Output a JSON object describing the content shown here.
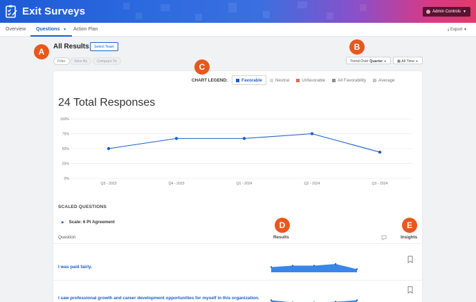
{
  "app": {
    "title": "Exit Surveys",
    "admin_label": "Admin Controls"
  },
  "nav": {
    "tabs": [
      {
        "label": "Overview"
      },
      {
        "label": "Questions"
      },
      {
        "label": "Action Plan"
      }
    ],
    "export_label": "Export"
  },
  "markers": {
    "a": "A",
    "b": "B",
    "c": "C",
    "d": "D",
    "e": "E"
  },
  "header": {
    "title": "All Results",
    "select_team": "Select Team",
    "filter": "Filter",
    "slice_by": "Slice By",
    "compare_to": "Compare To",
    "trend_prefix": "Trend Over",
    "trend_value": "Quarter",
    "time_range": "All Time"
  },
  "legend": {
    "label": "CHART LEGEND:",
    "items": [
      {
        "label": "Favorable",
        "color": "#1a5fc8"
      },
      {
        "label": "Neutral",
        "color": "#d7d9dc"
      },
      {
        "label": "Unfavorable",
        "color": "#e06a5a"
      },
      {
        "label": "All Favorability",
        "color": "#8a8d91"
      },
      {
        "label": "Average",
        "color": "#c2c4c7"
      }
    ]
  },
  "summary": {
    "total": "24 Total Responses"
  },
  "chart_data": {
    "type": "line",
    "categories": [
      "Q3 - 2023",
      "Q4 - 2023",
      "Q1 - 2024",
      "Q2 - 2024",
      "Q3 - 2024"
    ],
    "series": [
      {
        "name": "Favorable",
        "values": [
          50,
          67,
          67,
          75,
          44
        ],
        "color": "#1a5fc8"
      }
    ],
    "yticks": [
      "100%",
      "75%",
      "50%",
      "25%",
      "0%"
    ],
    "ylim": [
      0,
      100
    ],
    "grid": true
  },
  "questions_section": {
    "title": "SCALED QUESTIONS",
    "scale_label": "Scale: 6 Pt Agreement",
    "col_question": "Question",
    "col_results": "Results",
    "col_insights": "Insights",
    "rows": [
      {
        "text": "I was paid fairly.",
        "spark": [
          55,
          62,
          62,
          70,
          45
        ]
      },
      {
        "text": "I saw professional growth and career development opportunities for myself in this organization.",
        "spark": [
          55,
          45,
          45,
          48,
          55
        ]
      }
    ]
  }
}
